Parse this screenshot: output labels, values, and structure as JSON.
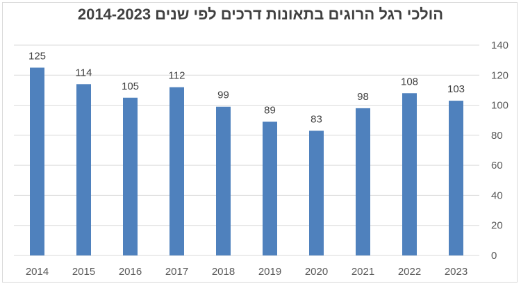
{
  "chart_data": {
    "type": "bar",
    "title": "הולכי רגל הרוגים בתאונות דרכים לפי שנים 2014-2023",
    "categories": [
      "2014",
      "2015",
      "2016",
      "2017",
      "2018",
      "2019",
      "2020",
      "2021",
      "2022",
      "2023"
    ],
    "values": [
      125,
      114,
      105,
      112,
      99,
      89,
      83,
      98,
      108,
      103
    ],
    "ylim": [
      0,
      140
    ],
    "yticks": [
      0,
      20,
      40,
      60,
      80,
      100,
      120,
      140
    ],
    "y_axis_side": "right",
    "grid": true,
    "data_labels": true,
    "bar_color": "#4f81bd",
    "grid_color": "#d9d9d9",
    "xlabel": "",
    "ylabel": ""
  }
}
